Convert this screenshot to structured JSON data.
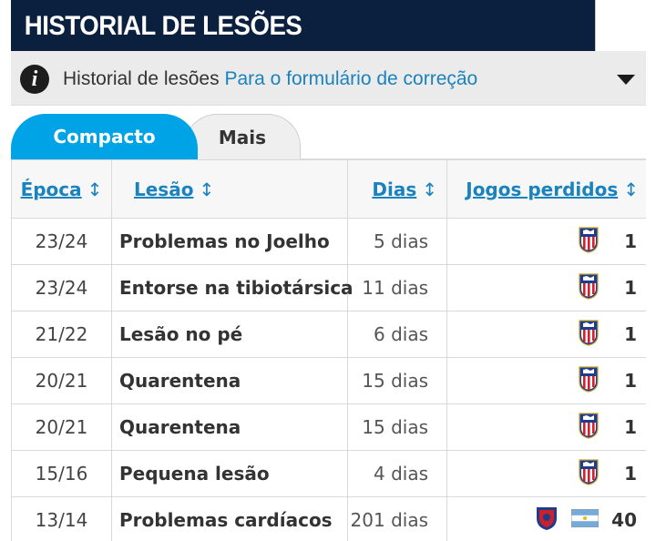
{
  "header": {
    "title": "HISTORIAL DE LESÕES"
  },
  "subheader": {
    "title": "Historial de lesões",
    "link": "Para o formulário de correção"
  },
  "tabs": [
    {
      "label": "Compacto",
      "active": true
    },
    {
      "label": "Mais",
      "active": false
    }
  ],
  "table": {
    "columns": {
      "season": "Época",
      "injury": "Lesão",
      "days": "Dias",
      "games": "Jogos perdidos"
    },
    "rows": [
      {
        "season": "23/24",
        "injury": "Problemas no Joelho",
        "days": "5 dias",
        "club_icon": "atletico-madrid-crest-icon",
        "games": "1"
      },
      {
        "season": "23/24",
        "injury": "Entorse na tibiotársica",
        "days": "11 dias",
        "club_icon": "atletico-madrid-crest-icon",
        "games": "1"
      },
      {
        "season": "21/22",
        "injury": "Lesão no pé",
        "days": "6 dias",
        "club_icon": "atletico-madrid-crest-icon",
        "games": "1"
      },
      {
        "season": "20/21",
        "injury": "Quarentena",
        "days": "15 dias",
        "club_icon": "atletico-madrid-crest-icon",
        "games": "1"
      },
      {
        "season": "20/21",
        "injury": "Quarentena",
        "days": "15 dias",
        "club_icon": "atletico-madrid-crest-icon",
        "games": "1"
      },
      {
        "season": "15/16",
        "injury": "Pequena lesão",
        "days": "4 dias",
        "club_icon": "atletico-madrid-crest-icon",
        "games": "1"
      },
      {
        "season": "13/14",
        "injury": "Problemas cardíacos",
        "days": "201 dias",
        "club_icon": "san-lorenzo-crest-icon",
        "flag_icon": "argentina-flag-icon",
        "games": "40"
      }
    ]
  },
  "colors": {
    "header_bg": "#0b1f3f",
    "accent": "#00a3e6",
    "link": "#1a82bd"
  }
}
